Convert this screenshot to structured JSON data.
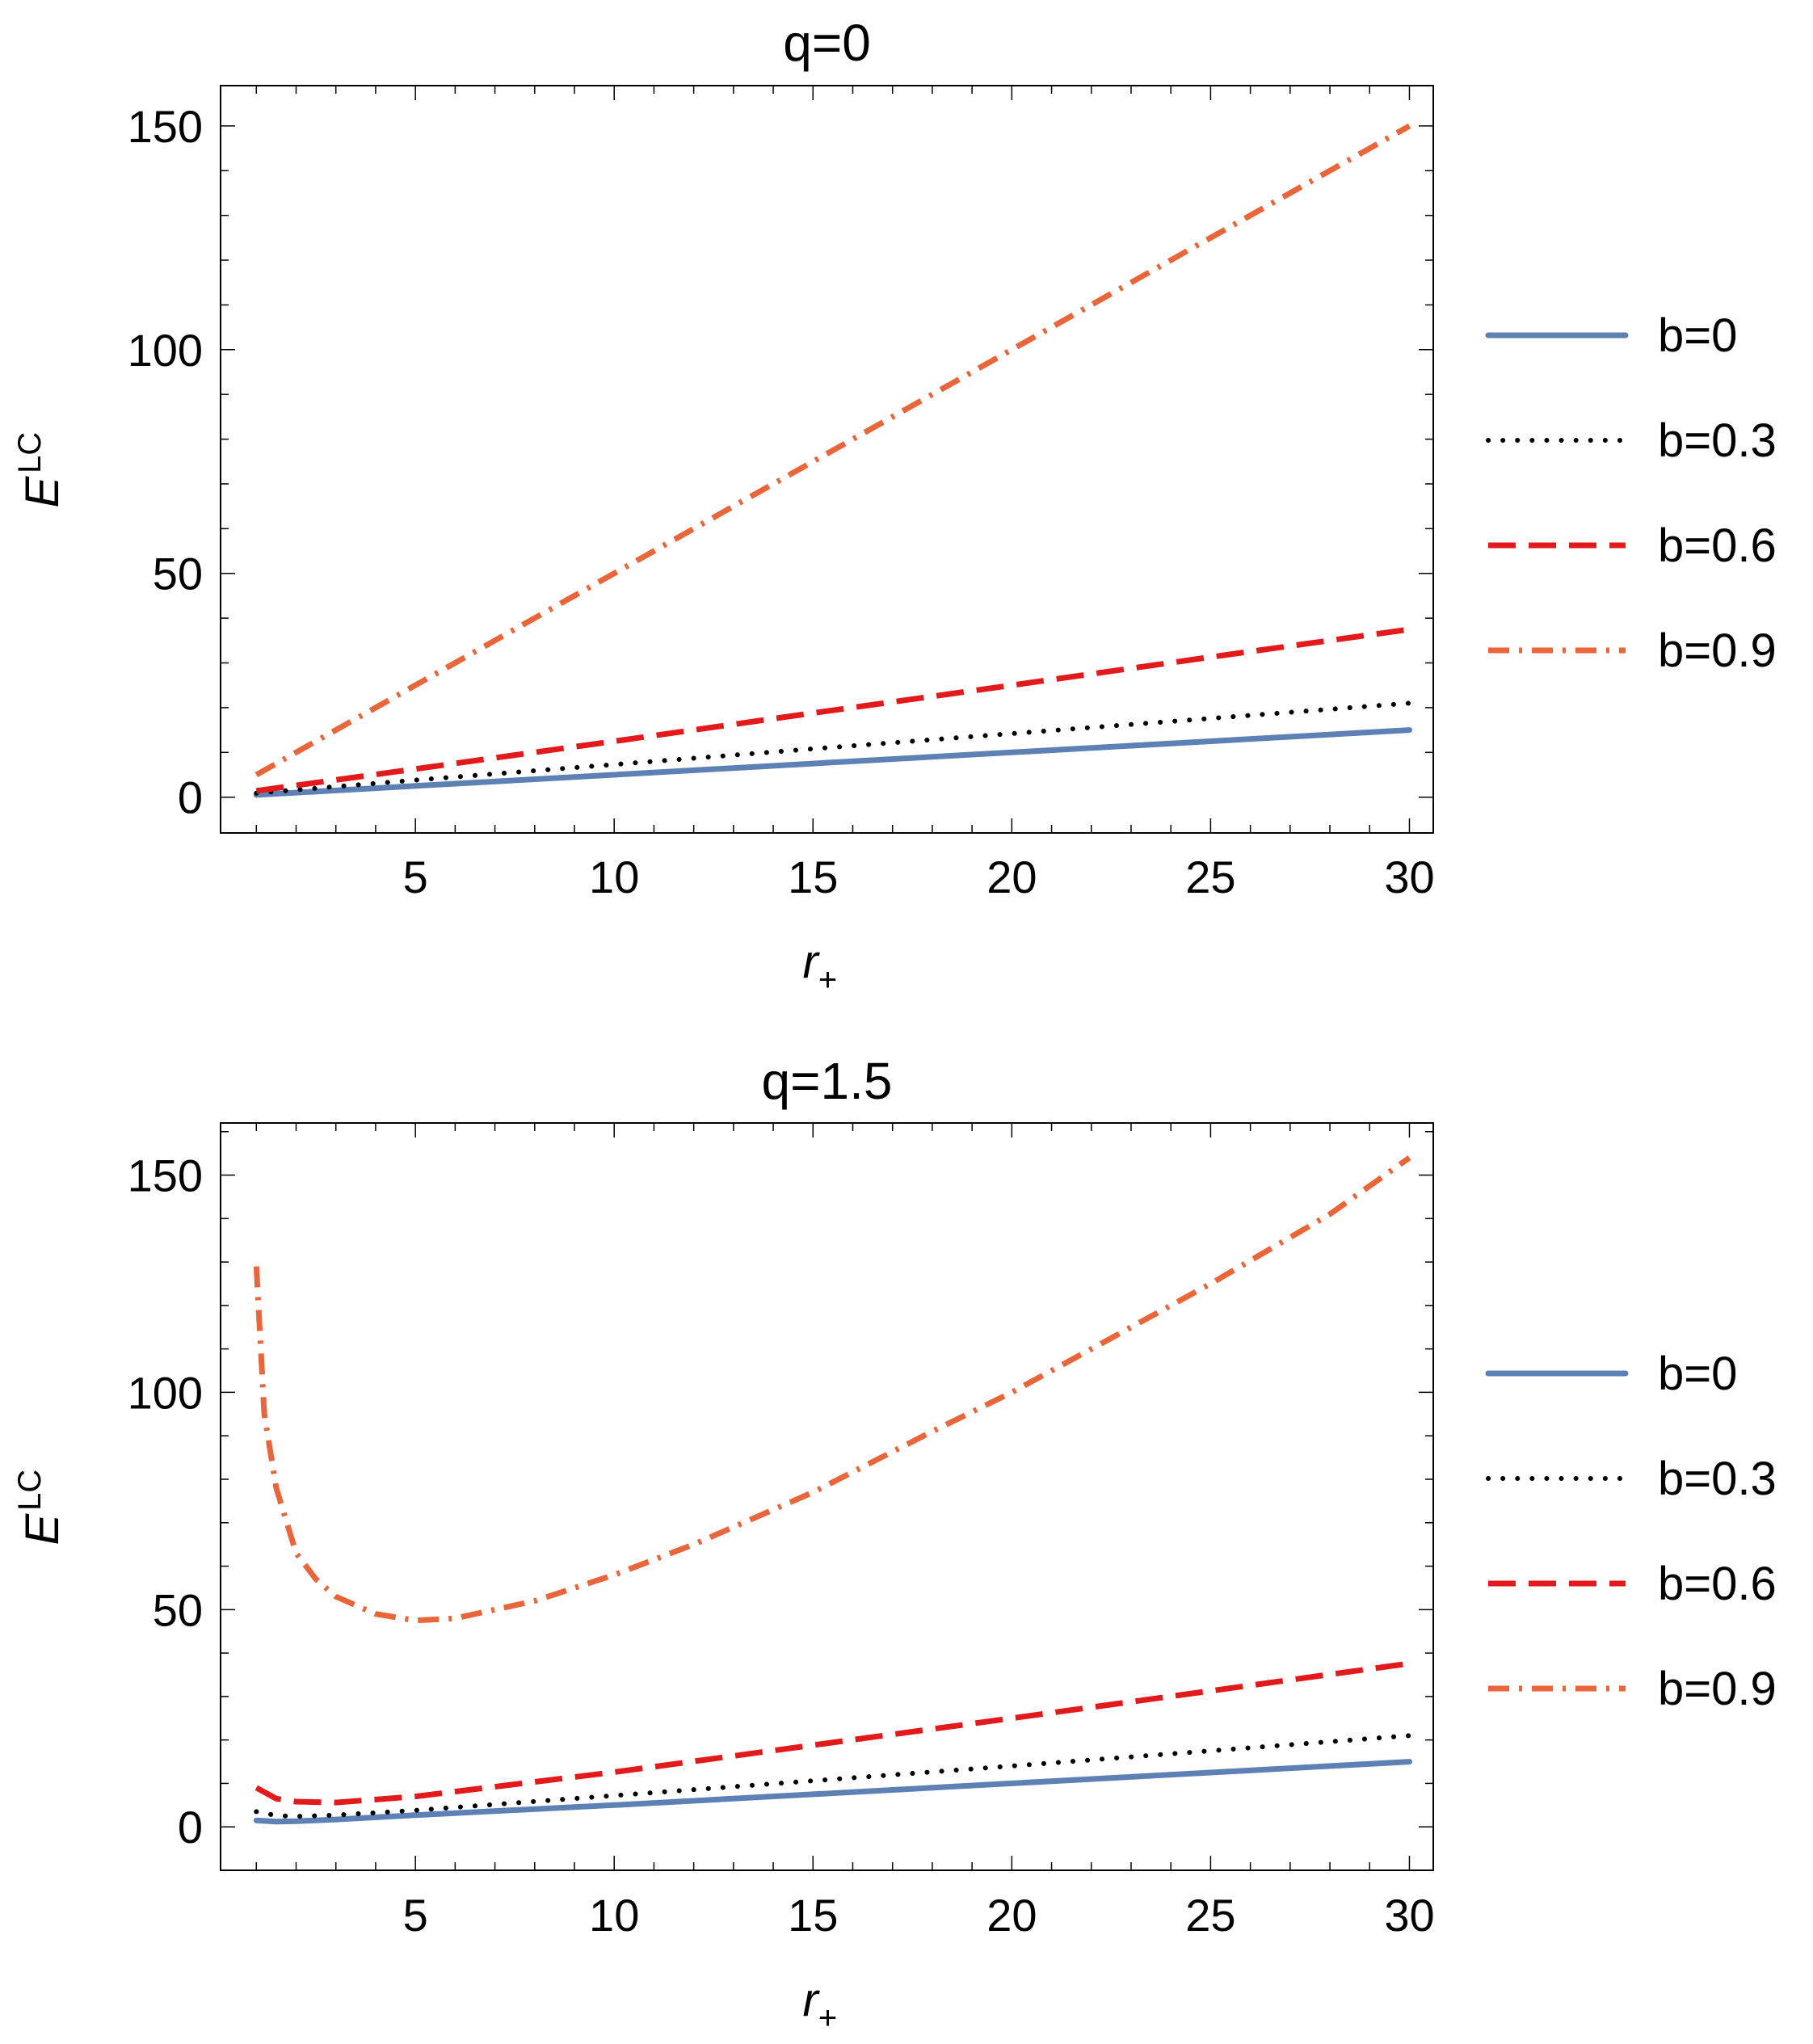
{
  "chart_data": [
    {
      "type": "line",
      "title": "q=0",
      "xlabel": "r",
      "xlabel_sub": "+",
      "ylabel": "E",
      "ylabel_sup": "LC",
      "xlim": [
        0.1,
        30.6
      ],
      "ylim": [
        -8,
        159
      ],
      "xticks": [
        5,
        10,
        15,
        20,
        25,
        30
      ],
      "yticks": [
        0,
        50,
        100,
        150
      ],
      "grid": false,
      "legend_position": "right",
      "series": [
        {
          "name": "b=0",
          "color": "#5E81B5",
          "style": "solid",
          "x": [
            1,
            5,
            10,
            15,
            20,
            25,
            30
          ],
          "y": [
            0.5,
            2.5,
            5,
            7.5,
            10,
            12.5,
            15
          ]
        },
        {
          "name": "b=0.3",
          "color": "#000000",
          "style": "dotted",
          "x": [
            1,
            5,
            10,
            15,
            20,
            25,
            30
          ],
          "y": [
            0.9,
            3.8,
            7.3,
            10.8,
            14.2,
            17.6,
            21
          ]
        },
        {
          "name": "b=0.6",
          "color": "#E31A1C",
          "style": "dashed",
          "x": [
            1,
            5,
            10,
            15,
            20,
            25,
            30
          ],
          "y": [
            1.4,
            6.3,
            12.5,
            18.8,
            25,
            31.3,
            37.5
          ]
        },
        {
          "name": "b=0.9",
          "color": "#E8663A",
          "style": "dashdot",
          "x": [
            1,
            5,
            10,
            15,
            20,
            25,
            30
          ],
          "y": [
            5,
            25,
            50,
            75,
            100,
            125,
            150
          ]
        }
      ]
    },
    {
      "type": "line",
      "title": "q=1.5",
      "xlabel": "r",
      "xlabel_sub": "+",
      "ylabel": "E",
      "ylabel_sup": "LC",
      "xlim": [
        0.1,
        30.6
      ],
      "ylim": [
        -10,
        162
      ],
      "xticks": [
        5,
        10,
        15,
        20,
        25,
        30
      ],
      "yticks": [
        0,
        50,
        100,
        150
      ],
      "grid": false,
      "legend_position": "right",
      "series": [
        {
          "name": "b=0",
          "color": "#5E81B5",
          "style": "solid",
          "x": [
            1,
            1.5,
            2,
            3,
            5,
            10,
            15,
            20,
            25,
            30
          ],
          "y": [
            1.5,
            1.2,
            1.3,
            1.7,
            2.7,
            5,
            7.5,
            10,
            12.5,
            15
          ]
        },
        {
          "name": "b=0.3",
          "color": "#000000",
          "style": "dotted",
          "x": [
            1,
            1.5,
            2,
            3,
            5,
            10,
            15,
            20,
            25,
            30
          ],
          "y": [
            3.5,
            2.6,
            2.4,
            2.7,
            3.8,
            7.2,
            10.6,
            14,
            17.5,
            21
          ]
        },
        {
          "name": "b=0.6",
          "color": "#E31A1C",
          "style": "dashed",
          "x": [
            1,
            1.5,
            2,
            3,
            5,
            10,
            15,
            20,
            25,
            30
          ],
          "y": [
            9,
            6.5,
            5.8,
            5.6,
            7,
            12.6,
            18.8,
            25,
            31.3,
            37.6
          ]
        },
        {
          "name": "b=0.9",
          "color": "#E8663A",
          "style": "dashdot",
          "x": [
            1,
            1.2,
            1.5,
            2,
            2.5,
            3,
            4,
            5,
            6,
            8,
            10,
            12,
            15,
            18,
            20,
            22,
            25,
            28,
            30
          ],
          "y": [
            129,
            95,
            78,
            63,
            57,
            53,
            49,
            47.5,
            48,
            52,
            58,
            65,
            77,
            91,
            100,
            110,
            125,
            141,
            154
          ]
        }
      ]
    }
  ]
}
